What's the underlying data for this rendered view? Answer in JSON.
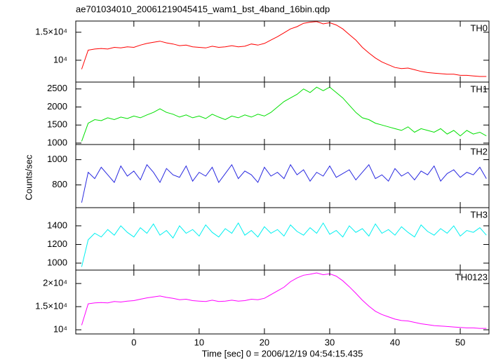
{
  "chart_data": [
    {
      "type": "line",
      "title": "ae701034010_20061219045415_wam1_bst_4band_16bin.qdp",
      "x": [
        -8,
        -7,
        -6,
        -5,
        -4,
        -3,
        -2,
        -1,
        0,
        1,
        2,
        3,
        4,
        5,
        6,
        7,
        8,
        9,
        10,
        11,
        12,
        13,
        14,
        15,
        16,
        17,
        18,
        19,
        20,
        21,
        22,
        23,
        24,
        25,
        26,
        27,
        28,
        29,
        30,
        31,
        32,
        33,
        34,
        35,
        36,
        37,
        38,
        39,
        40,
        41,
        42,
        43,
        44,
        45,
        46,
        47,
        48,
        49,
        50,
        51,
        52,
        53,
        54
      ],
      "series": [
        {
          "name": "TH0",
          "color": "#ff0000",
          "values": [
            8400,
            11800,
            12000,
            12100,
            12000,
            12300,
            12200,
            12400,
            12300,
            12700,
            13000,
            13200,
            13400,
            13100,
            12900,
            12600,
            12700,
            12400,
            12300,
            12200,
            12500,
            12300,
            12400,
            12600,
            12400,
            12500,
            12900,
            12700,
            13000,
            13600,
            14200,
            14900,
            15600,
            16000,
            16600,
            16800,
            16900,
            16500,
            16700,
            16300,
            15600,
            14600,
            13600,
            12300,
            11300,
            10400,
            9700,
            9200,
            8700,
            8500,
            8600,
            8300,
            8000,
            7800,
            7700,
            7600,
            7500,
            7500,
            7300,
            7300,
            7200,
            7100,
            7100
          ]
        }
      ],
      "xlim": [
        -8.9,
        54.4
      ],
      "xticks": [
        0,
        10,
        20,
        30,
        40,
        50
      ],
      "ylim": [
        6100,
        17000
      ],
      "yticks": [
        {
          "value": 10000,
          "label": "10⁴"
        },
        {
          "value": 15000,
          "label": "1.5×10⁴"
        }
      ]
    },
    {
      "type": "line",
      "x": [
        -8,
        -7,
        -6,
        -5,
        -4,
        -3,
        -2,
        -1,
        0,
        1,
        2,
        3,
        4,
        5,
        6,
        7,
        8,
        9,
        10,
        11,
        12,
        13,
        14,
        15,
        16,
        17,
        18,
        19,
        20,
        21,
        22,
        23,
        24,
        25,
        26,
        27,
        28,
        29,
        30,
        31,
        32,
        33,
        34,
        35,
        36,
        37,
        38,
        39,
        40,
        41,
        42,
        43,
        44,
        45,
        46,
        47,
        48,
        49,
        50,
        51,
        52,
        53,
        54
      ],
      "series": [
        {
          "name": "TH1",
          "color": "#00e000",
          "values": [
            1050,
            1550,
            1650,
            1620,
            1700,
            1650,
            1720,
            1680,
            1750,
            1700,
            1780,
            1850,
            1950,
            1850,
            1800,
            1720,
            1780,
            1700,
            1750,
            1680,
            1800,
            1720,
            1650,
            1750,
            1700,
            1780,
            1720,
            1800,
            1750,
            1850,
            2000,
            2150,
            2250,
            2350,
            2500,
            2400,
            2550,
            2450,
            2550,
            2400,
            2250,
            2050,
            1850,
            1700,
            1650,
            1550,
            1500,
            1450,
            1400,
            1350,
            1450,
            1300,
            1400,
            1350,
            1300,
            1400,
            1250,
            1350,
            1200,
            1350,
            1250,
            1300,
            1200
          ]
        }
      ],
      "xlim": [
        -8.9,
        54.4
      ],
      "xticks": [
        0,
        10,
        20,
        30,
        40,
        50
      ],
      "ylim": [
        960,
        2690
      ],
      "yticks": [
        1000,
        1500,
        2000,
        2500
      ]
    },
    {
      "type": "line",
      "ylabel": "Counts/sec",
      "x": [
        -8,
        -7,
        -6,
        -5,
        -4,
        -3,
        -2,
        -1,
        0,
        1,
        2,
        3,
        4,
        5,
        6,
        7,
        8,
        9,
        10,
        11,
        12,
        13,
        14,
        15,
        16,
        17,
        18,
        19,
        20,
        21,
        22,
        23,
        24,
        25,
        26,
        27,
        28,
        29,
        30,
        31,
        32,
        33,
        34,
        35,
        36,
        37,
        38,
        39,
        40,
        41,
        42,
        43,
        44,
        45,
        46,
        47,
        48,
        49,
        50,
        51,
        52,
        53,
        54
      ],
      "series": [
        {
          "name": "TH2",
          "color": "#2828e0",
          "values": [
            660,
            900,
            850,
            940,
            880,
            820,
            950,
            870,
            910,
            840,
            960,
            900,
            820,
            930,
            880,
            860,
            950,
            830,
            900,
            870,
            940,
            820,
            890,
            960,
            850,
            910,
            880,
            820,
            940,
            870,
            900,
            850,
            960,
            880,
            920,
            830,
            900,
            870,
            950,
            860,
            890,
            920,
            840,
            900,
            960,
            850,
            880,
            830,
            930,
            870,
            900,
            840,
            910,
            880,
            950,
            830,
            890,
            920,
            860,
            900,
            880,
            940,
            850
          ]
        }
      ],
      "xlim": [
        -8.9,
        54.4
      ],
      "xticks": [
        0,
        10,
        20,
        30,
        40,
        50
      ],
      "ylim": [
        620,
        1120
      ],
      "yticks": [
        800,
        1000
      ]
    },
    {
      "type": "line",
      "x": [
        -8,
        -7,
        -6,
        -5,
        -4,
        -3,
        -2,
        -1,
        0,
        1,
        2,
        3,
        4,
        5,
        6,
        7,
        8,
        9,
        10,
        11,
        12,
        13,
        14,
        15,
        16,
        17,
        18,
        19,
        20,
        21,
        22,
        23,
        24,
        25,
        26,
        27,
        28,
        29,
        30,
        31,
        32,
        33,
        34,
        35,
        36,
        37,
        38,
        39,
        40,
        41,
        42,
        43,
        44,
        45,
        46,
        47,
        48,
        49,
        50,
        51,
        52,
        53,
        54
      ],
      "series": [
        {
          "name": "TH3",
          "color": "#00f0f0",
          "values": [
            960,
            1250,
            1320,
            1280,
            1360,
            1300,
            1400,
            1330,
            1280,
            1380,
            1320,
            1420,
            1300,
            1350,
            1270,
            1400,
            1320,
            1360,
            1290,
            1410,
            1330,
            1280,
            1370,
            1320,
            1430,
            1300,
            1350,
            1280,
            1390,
            1320,
            1360,
            1290,
            1410,
            1340,
            1300,
            1380,
            1320,
            1430,
            1310,
            1350,
            1280,
            1400,
            1330,
            1370,
            1290,
            1420,
            1320,
            1360,
            1300,
            1390,
            1330,
            1280,
            1410,
            1340,
            1300,
            1370,
            1320,
            1400,
            1290,
            1350,
            1330,
            1380,
            1300
          ]
        }
      ],
      "xlim": [
        -8.9,
        54.4
      ],
      "xticks": [
        0,
        10,
        20,
        30,
        40,
        50
      ],
      "ylim": [
        925,
        1595
      ],
      "yticks": [
        1000,
        1200,
        1400
      ]
    },
    {
      "type": "line",
      "xlabel": "Time [sec] 0 = 2006/12/19 04:54:15.435",
      "x": [
        -8,
        -7,
        -6,
        -5,
        -4,
        -3,
        -2,
        -1,
        0,
        1,
        2,
        3,
        4,
        5,
        6,
        7,
        8,
        9,
        10,
        11,
        12,
        13,
        14,
        15,
        16,
        17,
        18,
        19,
        20,
        21,
        22,
        23,
        24,
        25,
        26,
        27,
        28,
        29,
        30,
        31,
        32,
        33,
        34,
        35,
        36,
        37,
        38,
        39,
        40,
        41,
        42,
        43,
        44,
        45,
        46,
        47,
        48,
        49,
        50,
        51,
        52,
        53,
        54
      ],
      "series": [
        {
          "name": "TH0123",
          "color": "#ff00ff",
          "values": [
            11000,
            15600,
            15800,
            15900,
            15800,
            16100,
            16000,
            16200,
            16300,
            16600,
            16900,
            17100,
            17300,
            17000,
            16800,
            16500,
            16600,
            16300,
            16200,
            16100,
            16400,
            16100,
            16200,
            16400,
            16200,
            16300,
            16600,
            16500,
            16800,
            17600,
            18400,
            19200,
            20400,
            21200,
            21800,
            22000,
            22300,
            21900,
            22100,
            21600,
            20600,
            19300,
            17900,
            16400,
            15100,
            14000,
            13300,
            12800,
            12300,
            12000,
            11900,
            11600,
            11300,
            11100,
            10900,
            10800,
            10700,
            10600,
            10500,
            10400,
            10400,
            10300,
            10300
          ]
        }
      ],
      "xlim": [
        -8.9,
        54.4
      ],
      "xticks": [
        0,
        10,
        20,
        30,
        40,
        50
      ],
      "ylim": [
        9100,
        22900
      ],
      "yticks": [
        {
          "value": 10000,
          "label": "10⁴"
        },
        {
          "value": 15000,
          "label": "1.5×10⁴"
        },
        {
          "value": 20000,
          "label": "2×10⁴"
        }
      ]
    }
  ]
}
